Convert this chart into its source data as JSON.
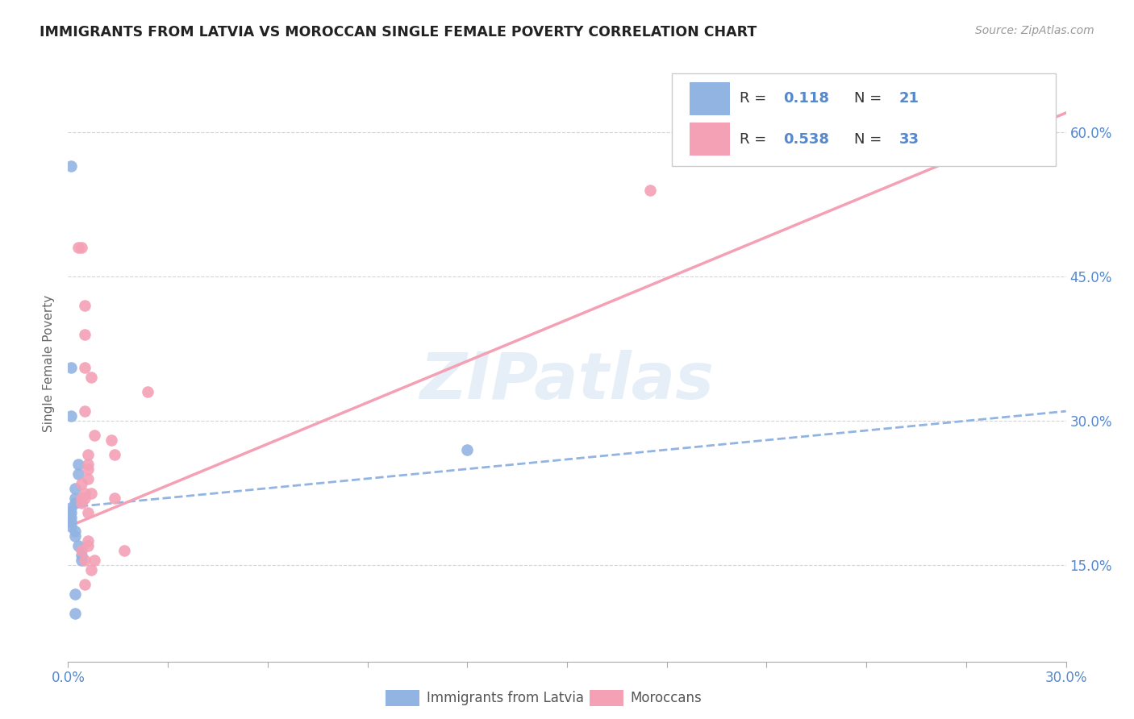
{
  "title": "IMMIGRANTS FROM LATVIA VS MOROCCAN SINGLE FEMALE POVERTY CORRELATION CHART",
  "source": "Source: ZipAtlas.com",
  "ylabel": "Single Female Poverty",
  "legend_label1": "Immigrants from Latvia",
  "legend_label2": "Moroccans",
  "r1": "0.118",
  "n1": "21",
  "r2": "0.538",
  "n2": "33",
  "color_blue": "#92b4e3",
  "color_pink": "#f4a0b5",
  "color_legend_text": "#5588cc",
  "watermark": "ZIPatlas",
  "ytick_labels": [
    "15.0%",
    "30.0%",
    "45.0%",
    "60.0%"
  ],
  "ytick_values": [
    0.15,
    0.3,
    0.45,
    0.6
  ],
  "xlim": [
    0.0,
    0.3
  ],
  "ylim": [
    0.05,
    0.67
  ],
  "blue_points": [
    [
      0.001,
      0.565
    ],
    [
      0.001,
      0.355
    ],
    [
      0.001,
      0.305
    ],
    [
      0.003,
      0.255
    ],
    [
      0.003,
      0.245
    ],
    [
      0.002,
      0.23
    ],
    [
      0.002,
      0.22
    ],
    [
      0.002,
      0.215
    ],
    [
      0.001,
      0.21
    ],
    [
      0.001,
      0.205
    ],
    [
      0.001,
      0.2
    ],
    [
      0.001,
      0.195
    ],
    [
      0.001,
      0.19
    ],
    [
      0.002,
      0.185
    ],
    [
      0.002,
      0.18
    ],
    [
      0.003,
      0.17
    ],
    [
      0.004,
      0.16
    ],
    [
      0.004,
      0.155
    ],
    [
      0.002,
      0.12
    ],
    [
      0.002,
      0.1
    ],
    [
      0.12,
      0.27
    ]
  ],
  "pink_points": [
    [
      0.003,
      0.48
    ],
    [
      0.004,
      0.48
    ],
    [
      0.005,
      0.42
    ],
    [
      0.005,
      0.39
    ],
    [
      0.005,
      0.355
    ],
    [
      0.007,
      0.345
    ],
    [
      0.005,
      0.31
    ],
    [
      0.008,
      0.285
    ],
    [
      0.006,
      0.265
    ],
    [
      0.006,
      0.255
    ],
    [
      0.006,
      0.25
    ],
    [
      0.006,
      0.24
    ],
    [
      0.004,
      0.235
    ],
    [
      0.005,
      0.225
    ],
    [
      0.007,
      0.225
    ],
    [
      0.004,
      0.22
    ],
    [
      0.005,
      0.22
    ],
    [
      0.004,
      0.215
    ],
    [
      0.006,
      0.205
    ],
    [
      0.006,
      0.175
    ],
    [
      0.006,
      0.17
    ],
    [
      0.004,
      0.165
    ],
    [
      0.005,
      0.155
    ],
    [
      0.008,
      0.155
    ],
    [
      0.007,
      0.145
    ],
    [
      0.005,
      0.13
    ],
    [
      0.013,
      0.28
    ],
    [
      0.014,
      0.265
    ],
    [
      0.014,
      0.22
    ],
    [
      0.017,
      0.165
    ],
    [
      0.024,
      0.33
    ],
    [
      0.175,
      0.54
    ],
    [
      0.256,
      0.59
    ]
  ],
  "blue_line_x": [
    0.0,
    0.3
  ],
  "blue_line_y": [
    0.21,
    0.31
  ],
  "pink_line_x": [
    0.0,
    0.3
  ],
  "pink_line_y": [
    0.19,
    0.62
  ],
  "bg_color": "#ffffff",
  "grid_color": "#d0d0d0"
}
